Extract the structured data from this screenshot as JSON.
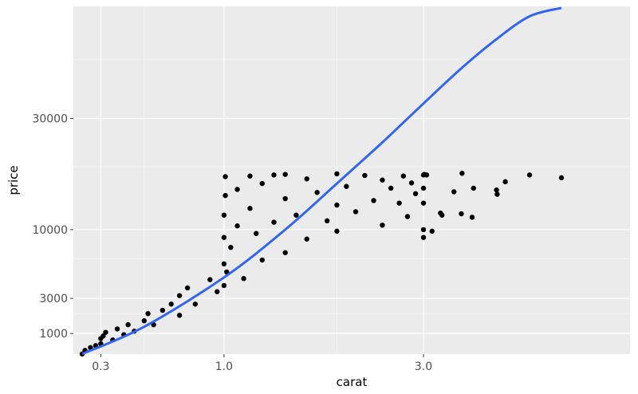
{
  "chart_data": {
    "type": "scatter",
    "title": "",
    "xlabel": "carat",
    "ylabel": "price",
    "x_scale": "sqrt",
    "y_scale": "sqrt",
    "xlim": [
      0.2,
      6.2
    ],
    "ylim": [
      326,
      61000
    ],
    "x_ticks": [
      {
        "value": 0.3,
        "label": "0.3"
      },
      {
        "value": 1.0,
        "label": "1.0"
      },
      {
        "value": 3.0,
        "label": "3.0"
      }
    ],
    "y_ticks": [
      {
        "value": 1000,
        "label": "1000"
      },
      {
        "value": 3000,
        "label": "3000"
      },
      {
        "value": 10000,
        "label": "10000"
      },
      {
        "value": 30000,
        "label": "30000"
      }
    ],
    "x_minor_grid": [
      0.5,
      2.0
    ],
    "y_minor_grid": [
      2000,
      6500,
      20000,
      45000
    ],
    "grid": true,
    "legend": "none",
    "colors": {
      "panel": "#ebebeb",
      "grid": "#ffffff",
      "points": "#000000",
      "trend": "#3366ee"
    },
    "series": [
      {
        "type": "scatter",
        "points": [
          [
            0.23,
            330
          ],
          [
            0.24,
            420
          ],
          [
            0.26,
            500
          ],
          [
            0.28,
            560
          ],
          [
            0.3,
            620
          ],
          [
            0.3,
            800
          ],
          [
            0.31,
            900
          ],
          [
            0.32,
            1050
          ],
          [
            0.35,
            750
          ],
          [
            0.37,
            1200
          ],
          [
            0.4,
            950
          ],
          [
            0.42,
            1400
          ],
          [
            0.45,
            1100
          ],
          [
            0.5,
            1600
          ],
          [
            0.52,
            2000
          ],
          [
            0.55,
            1400
          ],
          [
            0.6,
            2200
          ],
          [
            0.65,
            2600
          ],
          [
            0.7,
            1900
          ],
          [
            0.7,
            3200
          ],
          [
            0.75,
            3800
          ],
          [
            0.8,
            2600
          ],
          [
            0.9,
            4500
          ],
          [
            0.95,
            3500
          ],
          [
            1.0,
            4000
          ],
          [
            1.0,
            6000
          ],
          [
            1.0,
            9000
          ],
          [
            1.0,
            12000
          ],
          [
            1.01,
            15000
          ],
          [
            1.01,
            18200
          ],
          [
            1.02,
            5200
          ],
          [
            1.05,
            7800
          ],
          [
            1.1,
            10500
          ],
          [
            1.1,
            16000
          ],
          [
            1.15,
            4600
          ],
          [
            1.2,
            13000
          ],
          [
            1.2,
            18300
          ],
          [
            1.25,
            9500
          ],
          [
            1.3,
            6400
          ],
          [
            1.3,
            17000
          ],
          [
            1.4,
            11000
          ],
          [
            1.4,
            18500
          ],
          [
            1.5,
            7200
          ],
          [
            1.5,
            14500
          ],
          [
            1.5,
            18600
          ],
          [
            1.6,
            12000
          ],
          [
            1.7,
            8800
          ],
          [
            1.7,
            17800
          ],
          [
            1.8,
            15500
          ],
          [
            1.9,
            11200
          ],
          [
            2.0,
            9800
          ],
          [
            2.0,
            13500
          ],
          [
            2.0,
            18700
          ],
          [
            2.1,
            16500
          ],
          [
            2.2,
            12500
          ],
          [
            2.3,
            18400
          ],
          [
            2.4,
            14200
          ],
          [
            2.5,
            10600
          ],
          [
            2.5,
            17600
          ],
          [
            2.6,
            16200
          ],
          [
            2.7,
            13800
          ],
          [
            2.75,
            18300
          ],
          [
            2.8,
            11800
          ],
          [
            2.85,
            17100
          ],
          [
            2.9,
            15300
          ],
          [
            3.0,
            18500
          ],
          [
            3.0,
            16200
          ],
          [
            3.0,
            13800
          ],
          [
            3.0,
            10000
          ],
          [
            3.0,
            9000
          ],
          [
            3.01,
            18600
          ],
          [
            3.04,
            18500
          ],
          [
            3.11,
            9800
          ],
          [
            3.22,
            12300
          ],
          [
            3.24,
            12000
          ],
          [
            3.4,
            15600
          ],
          [
            3.5,
            12200
          ],
          [
            3.51,
            18800
          ],
          [
            3.65,
            11700
          ],
          [
            3.67,
            16200
          ],
          [
            4.0,
            15900
          ],
          [
            4.01,
            15200
          ],
          [
            4.13,
            17300
          ],
          [
            4.5,
            18500
          ],
          [
            5.01,
            18000
          ]
        ]
      },
      {
        "type": "line",
        "smooth": true,
        "points": [
          [
            0.23,
            330
          ],
          [
            0.5,
            1300
          ],
          [
            1.0,
            4700
          ],
          [
            1.5,
            10000
          ],
          [
            2.0,
            17000
          ],
          [
            2.5,
            24800
          ],
          [
            3.0,
            33500
          ],
          [
            3.5,
            42500
          ],
          [
            4.0,
            50800
          ],
          [
            4.5,
            57800
          ],
          [
            5.01,
            60500
          ]
        ]
      }
    ]
  }
}
